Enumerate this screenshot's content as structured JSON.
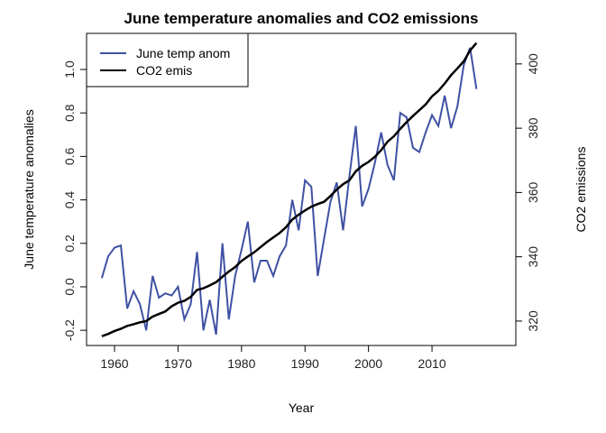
{
  "chart_data": {
    "type": "line",
    "title": "June temperature anomalies and CO2 emissions",
    "xlabel": "Year",
    "ylabel_left": "June temperature anomalies",
    "ylabel_right": "CO2 emissions",
    "xlim": [
      1955.6,
      2023.2
    ],
    "ylim_left": [
      -0.27,
      1.166
    ],
    "ylim_right": [
      312.4,
      409.5
    ],
    "x_ticks": [
      1960,
      1970,
      1980,
      1990,
      2000,
      2010
    ],
    "y_left_ticks": [
      -0.2,
      0.0,
      0.2,
      0.4,
      0.6,
      0.8,
      1.0
    ],
    "y_left_tick_labels": [
      "-0.2",
      "0.0",
      "0.2",
      "0.4",
      "0.6",
      "0.8",
      "1.0"
    ],
    "y_right_ticks": [
      320,
      340,
      360,
      380,
      400
    ],
    "grid": false,
    "legend_position": "top-left",
    "x": [
      1958,
      1959,
      1960,
      1961,
      1962,
      1963,
      1964,
      1965,
      1966,
      1967,
      1968,
      1969,
      1970,
      1971,
      1972,
      1973,
      1974,
      1975,
      1976,
      1977,
      1978,
      1979,
      1980,
      1981,
      1982,
      1983,
      1984,
      1985,
      1986,
      1987,
      1988,
      1989,
      1990,
      1991,
      1992,
      1993,
      1994,
      1995,
      1996,
      1997,
      1998,
      1999,
      2000,
      2001,
      2002,
      2003,
      2004,
      2005,
      2006,
      2007,
      2008,
      2009,
      2010,
      2011,
      2012,
      2013,
      2014,
      2015,
      2016,
      2017
    ],
    "series": [
      {
        "name": "June temp anom",
        "axis": "left",
        "color": "#3f51a3",
        "values": [
          0.04,
          0.14,
          0.18,
          0.19,
          -0.1,
          -0.02,
          -0.08,
          -0.2,
          0.05,
          -0.05,
          -0.03,
          -0.04,
          0.0,
          -0.15,
          -0.08,
          0.16,
          -0.2,
          -0.06,
          -0.22,
          0.2,
          -0.15,
          0.05,
          0.17,
          0.3,
          0.02,
          0.12,
          0.12,
          0.05,
          0.14,
          0.19,
          0.4,
          0.26,
          0.49,
          0.46,
          0.05,
          0.22,
          0.39,
          0.48,
          0.26,
          0.51,
          0.74,
          0.37,
          0.45,
          0.57,
          0.71,
          0.56,
          0.49,
          0.8,
          0.78,
          0.64,
          0.62,
          0.71,
          0.79,
          0.74,
          0.88,
          0.73,
          0.83,
          1.02,
          1.1,
          0.91
        ]
      },
      {
        "name": "CO2 emis",
        "axis": "right",
        "color": "#000000",
        "values": [
          315.3,
          316.0,
          316.9,
          317.6,
          318.5,
          319.0,
          319.6,
          320.0,
          321.4,
          322.2,
          323.0,
          324.6,
          325.7,
          326.3,
          327.5,
          329.7,
          330.2,
          331.1,
          332.1,
          333.8,
          335.4,
          336.8,
          338.7,
          340.1,
          341.4,
          343.0,
          344.6,
          346.0,
          347.4,
          349.2,
          351.6,
          353.1,
          354.4,
          355.6,
          356.4,
          357.1,
          358.9,
          360.9,
          362.6,
          363.8,
          366.6,
          368.3,
          369.5,
          371.1,
          373.2,
          375.8,
          377.5,
          379.8,
          381.9,
          383.8,
          385.6,
          387.4,
          389.9,
          391.6,
          393.9,
          396.5,
          398.6,
          400.8,
          404.2,
          406.5
        ]
      }
    ]
  }
}
